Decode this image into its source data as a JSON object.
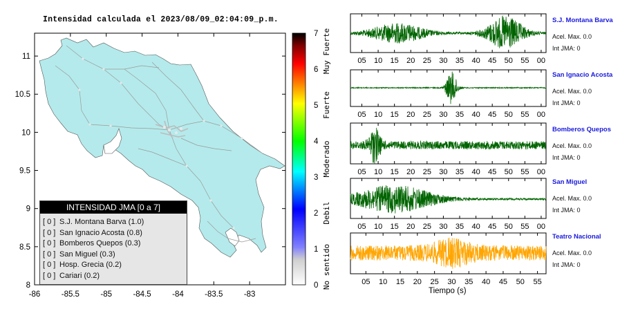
{
  "map": {
    "title": "Intensidad calculada el 2023/08/09_02:04:09_p.m.",
    "xticks": [
      "-86",
      "-85.5",
      "-85",
      "-84.5",
      "-84",
      "-83.5",
      "-83"
    ],
    "yticks": [
      "11",
      "10.5",
      "10",
      "9.5",
      "9",
      "8.5",
      "8"
    ],
    "land_color": "#b4eaeb",
    "road_color": "#9a9a9a"
  },
  "colorbar": {
    "ticks": [
      "0",
      "1",
      "2",
      "3",
      "4",
      "5",
      "6",
      "7"
    ],
    "labels": [
      "No sentido",
      "Debil",
      "Moderado",
      "Fuerte",
      "Muy Fuerte"
    ],
    "colors": [
      "#ffffff",
      "#8080ff",
      "#0000ff",
      "#00ffff",
      "#00ff00",
      "#ffff00",
      "#ff8000",
      "#ff0000",
      "#800000",
      "#000000"
    ]
  },
  "legend": {
    "title": "INTENSIDAD JMA [0 a 7]",
    "items": [
      {
        "level": "[ 0 ]",
        "station": "S.J. Montana Barva (1.0)"
      },
      {
        "level": "[ 0 ]",
        "station": "San Ignacio Acosta (0.8)"
      },
      {
        "level": "[ 0 ]",
        "station": "Bomberos Quepos (0.3)"
      },
      {
        "level": "[ 0 ]",
        "station": "San Miguel (0.3)"
      },
      {
        "level": "[ 0 ]",
        "station": "Hosp. Grecia (0.2)"
      },
      {
        "level": "[ 0 ]",
        "station": "Cariari (0.2)"
      }
    ]
  },
  "chart_data": [
    {
      "type": "heatmap",
      "title": "Intensidad calculada el 2023/08/09_02:04:09_p.m.",
      "xlabel": "",
      "ylabel": "",
      "xlim": [
        -86,
        -82.5
      ],
      "ylim": [
        8,
        11.3
      ],
      "colorbar_range": [
        0,
        7
      ],
      "colorbar_labels": [
        "No sentido",
        "Debil",
        "Moderado",
        "Fuerte",
        "Muy Fuerte"
      ],
      "intensity_values": [
        {
          "station": "S.J. Montana Barva",
          "jma": 1.0
        },
        {
          "station": "San Ignacio Acosta",
          "jma": 0.8
        },
        {
          "station": "Bomberos Quepos",
          "jma": 0.3
        },
        {
          "station": "San Miguel",
          "jma": 0.3
        },
        {
          "station": "Hosp. Grecia",
          "jma": 0.2
        },
        {
          "station": "Cariari",
          "jma": 0.2
        }
      ]
    },
    {
      "type": "line",
      "title": "",
      "xlabel": "Tiempo (s)",
      "ylabel": "",
      "series": [
        {
          "name": "S.J. Montana Barva",
          "accel_max": "Acel. Max. 0.0",
          "jma": "Int JMA: 0",
          "color": "#006400",
          "xticks": [
            "05",
            "10",
            "15",
            "20",
            "25",
            "30",
            "35",
            "40",
            "45",
            "50",
            "55",
            "00"
          ],
          "x0": 1.5,
          "x1": 61.5,
          "bursts": [
            [
              16,
              6,
              0.55
            ],
            [
              49,
              4,
              0.95
            ]
          ],
          "noise": 0.06
        },
        {
          "name": "San Ignacio Acosta",
          "accel_max": "Acel. Max. 0.0",
          "jma": "Int JMA: 0",
          "color": "#006400",
          "xticks": [
            "05",
            "10",
            "15",
            "20",
            "25",
            "30",
            "35",
            "40",
            "45",
            "50",
            "55",
            "00"
          ],
          "x0": 1.5,
          "x1": 61.5,
          "bursts": [
            [
              32.5,
              1.2,
              1.0
            ]
          ],
          "noise": 0.03
        },
        {
          "name": "Bomberos Quepos",
          "accel_max": "Acel. Max. 0.0",
          "jma": "Int JMA: 0",
          "color": "#006400",
          "xticks": [
            "05",
            "10",
            "15",
            "20",
            "25",
            "30",
            "35",
            "40",
            "45",
            "50",
            "55",
            "00"
          ],
          "x0": 1.5,
          "x1": 61.5,
          "bursts": [
            [
              9,
              1.2,
              0.85
            ]
          ],
          "noise": 0.22
        },
        {
          "name": "San Miguel",
          "accel_max": "Acel. Max. 0.0",
          "jma": "Int JMA: 0",
          "color": "#006400",
          "xticks": [
            "05",
            "10",
            "15",
            "20",
            "25",
            "30",
            "35",
            "40",
            "45",
            "50",
            "55",
            "00"
          ],
          "x0": 1.5,
          "x1": 61.5,
          "bursts": [
            [
              15,
              9,
              0.75
            ]
          ],
          "noise": 0.05
        },
        {
          "name": "Teatro Nacional",
          "accel_max": "Acel. Max. 0.0",
          "jma": "Int JMA: 0",
          "color": "#ffa500",
          "xticks": [
            "05",
            "10",
            "15",
            "20",
            "25",
            "30",
            "35",
            "40",
            "45",
            "50",
            "55"
          ],
          "x0": 0.5,
          "x1": 57.5,
          "bursts": [
            [
              30,
              4,
              0.45
            ]
          ],
          "noise": 0.42
        }
      ]
    }
  ]
}
